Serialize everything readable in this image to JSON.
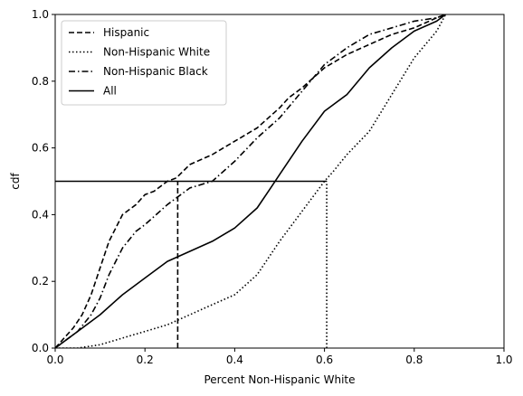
{
  "chart_data": {
    "type": "line",
    "title": "",
    "xlabel": "Percent Non-Hispanic White",
    "ylabel": "cdf",
    "xlim": [
      0,
      1
    ],
    "ylim": [
      0,
      1
    ],
    "xticks": [
      0.0,
      0.2,
      0.4,
      0.6,
      0.8,
      1.0
    ],
    "xtick_labels": [
      "0.0",
      "0.2",
      "0.4",
      "0.6",
      "0.8",
      "1.0"
    ],
    "yticks": [
      0.0,
      0.2,
      0.4,
      0.6,
      0.8,
      1.0
    ],
    "ytick_labels": [
      "0.0",
      "0.2",
      "0.4",
      "0.6",
      "0.8",
      "1.0"
    ],
    "grid": false,
    "legend_position": "top-left",
    "series": [
      {
        "name": "Hispanic",
        "style": "dashed",
        "color": "#000000",
        "x": [
          0.0,
          0.02,
          0.04,
          0.06,
          0.08,
          0.1,
          0.12,
          0.15,
          0.18,
          0.2,
          0.22,
          0.25,
          0.27,
          0.3,
          0.35,
          0.4,
          0.45,
          0.5,
          0.52,
          0.55,
          0.6,
          0.65,
          0.7,
          0.75,
          0.8,
          0.85,
          0.87
        ],
        "y": [
          0.0,
          0.03,
          0.06,
          0.1,
          0.16,
          0.24,
          0.32,
          0.4,
          0.43,
          0.46,
          0.47,
          0.5,
          0.51,
          0.55,
          0.58,
          0.62,
          0.66,
          0.72,
          0.75,
          0.78,
          0.84,
          0.88,
          0.91,
          0.94,
          0.96,
          0.99,
          1.0
        ]
      },
      {
        "name": "Non-Hispanic White",
        "style": "dotted",
        "color": "#000000",
        "x": [
          0.0,
          0.05,
          0.1,
          0.15,
          0.2,
          0.25,
          0.3,
          0.35,
          0.4,
          0.45,
          0.5,
          0.55,
          0.6,
          0.62,
          0.65,
          0.7,
          0.75,
          0.8,
          0.85,
          0.87
        ],
        "y": [
          0.0,
          0.0,
          0.01,
          0.03,
          0.05,
          0.07,
          0.1,
          0.13,
          0.16,
          0.22,
          0.32,
          0.41,
          0.5,
          0.53,
          0.58,
          0.65,
          0.76,
          0.87,
          0.95,
          1.0
        ]
      },
      {
        "name": "Non-Hispanic Black",
        "style": "dashdot",
        "color": "#000000",
        "x": [
          0.0,
          0.02,
          0.05,
          0.08,
          0.1,
          0.12,
          0.15,
          0.18,
          0.2,
          0.25,
          0.3,
          0.35,
          0.4,
          0.45,
          0.5,
          0.55,
          0.6,
          0.65,
          0.7,
          0.75,
          0.8,
          0.85,
          0.87
        ],
        "y": [
          0.0,
          0.02,
          0.05,
          0.1,
          0.15,
          0.22,
          0.3,
          0.35,
          0.37,
          0.43,
          0.48,
          0.5,
          0.56,
          0.63,
          0.69,
          0.77,
          0.85,
          0.9,
          0.94,
          0.96,
          0.98,
          0.99,
          1.0
        ]
      },
      {
        "name": "All",
        "style": "solid",
        "color": "#000000",
        "x": [
          0.0,
          0.05,
          0.1,
          0.15,
          0.2,
          0.25,
          0.3,
          0.35,
          0.4,
          0.45,
          0.48,
          0.5,
          0.55,
          0.6,
          0.65,
          0.7,
          0.75,
          0.8,
          0.85,
          0.87
        ],
        "y": [
          0.0,
          0.05,
          0.1,
          0.16,
          0.21,
          0.26,
          0.29,
          0.32,
          0.36,
          0.42,
          0.48,
          0.52,
          0.62,
          0.71,
          0.76,
          0.84,
          0.9,
          0.95,
          0.98,
          1.0
        ]
      }
    ],
    "reference_lines": [
      {
        "type": "horizontal",
        "y": 0.5,
        "x_from": 0.0,
        "x_to": 0.605,
        "style": "solid"
      },
      {
        "type": "vertical",
        "x": 0.273,
        "y_from": 0.0,
        "y_to": 0.5,
        "style": "dashed"
      },
      {
        "type": "vertical",
        "x": 0.605,
        "y_from": 0.0,
        "y_to": 0.5,
        "style": "dotted"
      }
    ]
  }
}
